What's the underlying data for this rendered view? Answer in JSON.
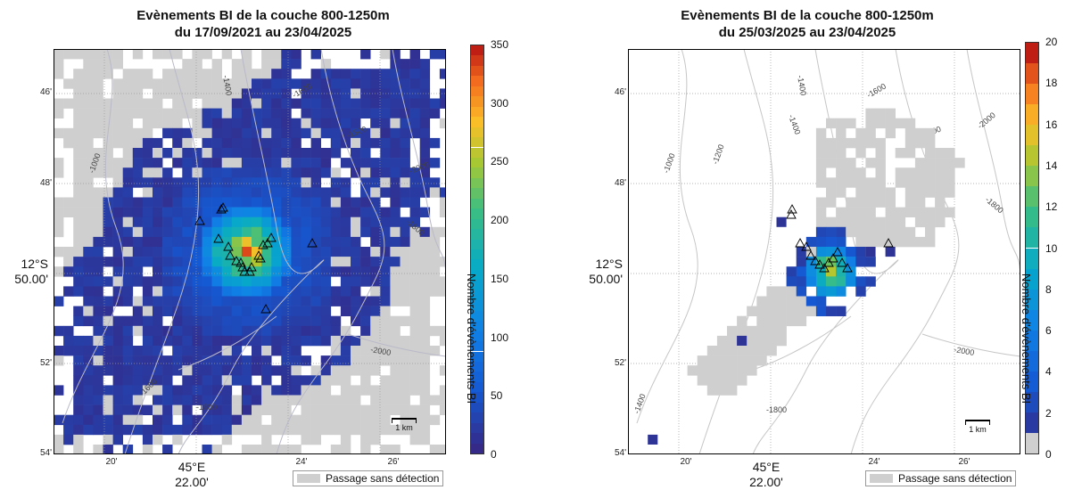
{
  "panels": [
    {
      "title_line1": "Evènements BI de la couche 800-1250m",
      "title_line2": "du 17/09/2021 au 23/04/2025",
      "colorbar_ticks": [
        "0",
        "50",
        "100",
        "150",
        "200",
        "250",
        "300",
        "350"
      ],
      "colorbar_label": "Nombre d'évènements BI",
      "lat_ticks": [
        "46'",
        "48'",
        "52'",
        "54'"
      ],
      "lon_ticks": [
        "20'",
        "24'",
        "26'"
      ],
      "lat_main": "12°S",
      "lat_main2": "50.00'",
      "lon_main": "45°E",
      "lon_main2": "22.00'",
      "legend_text": "Passage sans détection",
      "scale_label": "1 km",
      "contour_labels": [
        "-1400",
        "-1600",
        "-1800",
        "-2000",
        "-1000",
        "-1800",
        "-2000",
        "-1600",
        "-1800"
      ]
    },
    {
      "title_line1": "Evènements BI de la couche 800-1250m",
      "title_line2": "du 25/03/2025 au 23/04/2025",
      "colorbar_ticks": [
        "0",
        "2",
        "4",
        "6",
        "8",
        "10",
        "12",
        "14",
        "16",
        "18",
        "20"
      ],
      "colorbar_label": "Nombre d'évènements BI",
      "lat_ticks": [
        "46'",
        "48'",
        "52'",
        "54'"
      ],
      "lon_ticks": [
        "20'",
        "24'",
        "26'"
      ],
      "lat_main": "12°S",
      "lat_main2": "50.00'",
      "lon_main": "45°E",
      "lon_main2": "22.00'",
      "legend_text": "Passage sans détection",
      "scale_label": "1 km",
      "contour_labels": [
        "-1400",
        "-1600",
        "-1800",
        "-1400",
        "-1000",
        "-1200",
        "-2000",
        "-1800",
        "-2000",
        "-1600",
        "-1800",
        "-1400"
      ]
    }
  ],
  "colors": {
    "no_detection": "#cfcfcf",
    "background": "#ffffff",
    "contour": "#bdbdbd"
  }
}
